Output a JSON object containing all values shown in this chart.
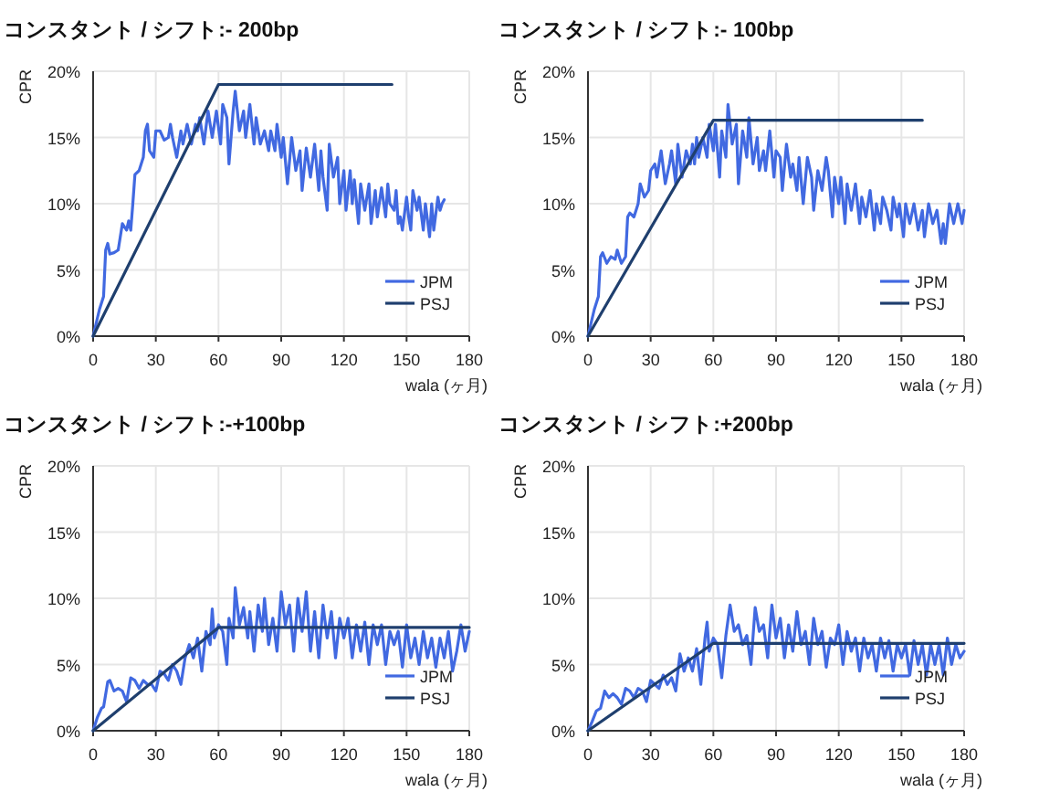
{
  "chart_data": [
    {
      "type": "line",
      "title": "コンスタント / シフト:- 200bp",
      "xlabel": "wala (ヶ月)",
      "ylabel": "CPR",
      "xlim": [
        0,
        180
      ],
      "xticks": [
        0,
        30,
        60,
        90,
        120,
        150,
        180
      ],
      "ylim": [
        0,
        20
      ],
      "yticks": [
        {
          "value": 0,
          "label": "0%"
        },
        {
          "value": 5,
          "label": "5%"
        },
        {
          "value": 10,
          "label": "10%"
        },
        {
          "value": 15,
          "label": "15%"
        },
        {
          "value": 20,
          "label": "20%"
        }
      ],
      "grid": true,
      "legend": "bottom right",
      "series": [
        {
          "name": "JPM",
          "color": "#4169e1",
          "x": [
            0,
            3,
            5,
            6,
            7,
            8,
            10,
            12,
            13,
            14,
            16,
            17,
            18,
            19,
            20,
            22,
            24,
            25,
            26,
            27,
            29,
            30,
            32,
            34,
            36,
            37,
            38,
            40,
            42,
            43,
            45,
            47,
            49,
            50,
            51,
            53,
            55,
            57,
            59,
            61,
            62,
            64,
            65,
            67,
            68,
            70,
            72,
            73,
            75,
            77,
            78,
            80,
            82,
            84,
            85,
            87,
            88,
            90,
            91,
            93,
            95,
            97,
            99,
            100,
            102,
            104,
            106,
            108,
            109,
            110,
            112,
            113,
            115,
            117,
            118,
            120,
            121,
            123,
            124,
            125,
            127,
            128,
            130,
            132,
            133,
            135,
            136,
            138,
            140,
            141,
            142,
            144,
            145,
            146,
            147,
            148,
            150,
            151,
            152,
            153,
            155,
            156,
            158,
            159,
            161,
            162,
            163,
            165,
            166,
            167,
            168
          ],
          "values": [
            0,
            2,
            3,
            6.5,
            7,
            6.2,
            6.3,
            6.5,
            7.5,
            8.5,
            8,
            8.7,
            8,
            10,
            12.2,
            12.5,
            13.5,
            15.5,
            16,
            14,
            13.5,
            15.5,
            15.5,
            14.8,
            15,
            16,
            15,
            13.5,
            15.5,
            14.5,
            16,
            14.5,
            16,
            15.5,
            16.5,
            14.5,
            17,
            15,
            17,
            14.5,
            17.5,
            16.5,
            13,
            17,
            18.5,
            15.5,
            17,
            15,
            17.5,
            14.5,
            16.5,
            14.5,
            15.5,
            14,
            15.5,
            14,
            16,
            13.5,
            15,
            11.5,
            15,
            12.5,
            14,
            11,
            14.2,
            12,
            14.5,
            11,
            14,
            12,
            9.5,
            14.5,
            12,
            13.5,
            10,
            12.5,
            9.5,
            12.5,
            10,
            11.8,
            8.5,
            11.5,
            9.5,
            11.5,
            8.5,
            11,
            9,
            11.2,
            9,
            11.5,
            10,
            9.5,
            11,
            8.5,
            9,
            8,
            10.5,
            9,
            8,
            11,
            9.5,
            10.5,
            8,
            10,
            7.5,
            10,
            8,
            10.5,
            9.5,
            10,
            10.3
          ]
        },
        {
          "name": "PSJ",
          "color": "#1f3f6e",
          "x": [
            0,
            60,
            143
          ],
          "values": [
            0,
            19,
            19
          ]
        }
      ]
    },
    {
      "type": "line",
      "title": "コンスタント / シフト:- 100bp",
      "xlabel": "wala (ヶ月)",
      "ylabel": "CPR",
      "xlim": [
        0,
        180
      ],
      "xticks": [
        0,
        30,
        60,
        90,
        120,
        150,
        180
      ],
      "ylim": [
        0,
        20
      ],
      "yticks": [
        {
          "value": 0,
          "label": "0%"
        },
        {
          "value": 5,
          "label": "5%"
        },
        {
          "value": 10,
          "label": "10%"
        },
        {
          "value": 15,
          "label": "15%"
        },
        {
          "value": 20,
          "label": "20%"
        }
      ],
      "grid": true,
      "legend": "bottom right",
      "series": [
        {
          "name": "JPM",
          "color": "#4169e1",
          "x": [
            0,
            3,
            5,
            6,
            7,
            9,
            11,
            13,
            14,
            16,
            18,
            19,
            20,
            22,
            24,
            25,
            27,
            29,
            30,
            32,
            33,
            35,
            37,
            39,
            40,
            42,
            43,
            45,
            47,
            49,
            50,
            51,
            52,
            53,
            55,
            57,
            58,
            60,
            61,
            63,
            64,
            66,
            67,
            69,
            71,
            72,
            74,
            76,
            77,
            79,
            81,
            82,
            84,
            85,
            87,
            89,
            90,
            92,
            93,
            95,
            97,
            98,
            100,
            101,
            103,
            105,
            107,
            108,
            110,
            112,
            114,
            115,
            117,
            118,
            120,
            121,
            123,
            124,
            126,
            128,
            130,
            131,
            133,
            135,
            137,
            138,
            140,
            141,
            143,
            145,
            146,
            148,
            149,
            151,
            152,
            154,
            156,
            158,
            160,
            161,
            163,
            165,
            167,
            169,
            170,
            171,
            173,
            175,
            177,
            179,
            180
          ],
          "values": [
            0,
            2,
            3,
            6,
            6.3,
            5.5,
            6,
            5.8,
            6.5,
            5.5,
            6,
            9,
            9.3,
            9,
            10,
            11.5,
            10.5,
            11,
            12.5,
            13,
            12,
            14,
            11.5,
            13,
            14,
            11.5,
            14.5,
            12,
            14,
            13,
            14.5,
            13,
            15,
            13.5,
            15,
            13.5,
            16,
            14,
            16,
            12,
            15.5,
            13.5,
            17.5,
            14.5,
            16,
            11.5,
            15.5,
            13.5,
            16.5,
            13,
            15,
            12.5,
            14,
            12.5,
            15.5,
            12,
            14,
            13.5,
            11,
            14.5,
            12,
            13,
            11,
            13.5,
            10,
            13.5,
            12,
            9.5,
            12.5,
            11,
            13.5,
            12.5,
            9,
            12,
            10,
            12,
            8.5,
            11.5,
            9.5,
            11.5,
            8.5,
            10.5,
            9,
            11,
            8,
            10,
            8.5,
            10.5,
            9.5,
            8,
            10.5,
            9,
            10,
            7.5,
            10,
            8.5,
            10,
            8,
            9.5,
            7.5,
            10,
            8.5,
            9.5,
            7,
            8.5,
            7,
            10,
            8.5,
            10,
            8.5,
            9.5
          ]
        },
        {
          "name": "PSJ",
          "color": "#1f3f6e",
          "x": [
            0,
            60,
            160
          ],
          "values": [
            0,
            16.3,
            16.3
          ]
        }
      ]
    },
    {
      "type": "line",
      "title": "コンスタント / シフト:-+100bp",
      "xlabel": "wala (ヶ月)",
      "ylabel": "CPR",
      "xlim": [
        0,
        180
      ],
      "xticks": [
        0,
        30,
        60,
        90,
        120,
        150,
        180
      ],
      "ylim": [
        0,
        20
      ],
      "yticks": [
        {
          "value": 0,
          "label": "0%"
        },
        {
          "value": 5,
          "label": "5%"
        },
        {
          "value": 10,
          "label": "10%"
        },
        {
          "value": 15,
          "label": "15%"
        },
        {
          "value": 20,
          "label": "20%"
        }
      ],
      "grid": true,
      "legend": "bottom right",
      "series": [
        {
          "name": "JPM",
          "color": "#4169e1",
          "x": [
            0,
            2,
            4,
            5,
            7,
            8,
            10,
            12,
            14,
            16,
            18,
            20,
            22,
            24,
            26,
            28,
            30,
            32,
            34,
            36,
            38,
            40,
            42,
            44,
            46,
            48,
            50,
            52,
            54,
            56,
            57,
            58,
            60,
            62,
            64,
            65,
            67,
            68,
            70,
            72,
            74,
            75,
            77,
            79,
            81,
            82,
            84,
            86,
            88,
            90,
            92,
            94,
            96,
            98,
            100,
            102,
            104,
            106,
            108,
            110,
            112,
            114,
            116,
            118,
            120,
            122,
            124,
            126,
            128,
            130,
            132,
            134,
            136,
            138,
            140,
            142,
            144,
            146,
            148,
            150,
            152,
            154,
            156,
            158,
            160,
            162,
            164,
            166,
            168,
            170,
            172,
            174,
            176,
            178,
            180
          ],
          "values": [
            0,
            1,
            1.7,
            1.8,
            3.7,
            3.8,
            3,
            3.2,
            3,
            2.2,
            4,
            3.8,
            3.2,
            3.8,
            3.5,
            3.5,
            3,
            4.5,
            4.3,
            3.8,
            5,
            4.5,
            3.5,
            5.5,
            6.5,
            5.5,
            7,
            4.5,
            7.5,
            6.5,
            9.2,
            7,
            8,
            7.5,
            5,
            8.5,
            7,
            10.8,
            8,
            9.3,
            7,
            9,
            6,
            9.5,
            7.5,
            10,
            6.5,
            8.5,
            6,
            10.5,
            8,
            9.5,
            6,
            10,
            7.5,
            10.5,
            6,
            9,
            5.5,
            9.5,
            7,
            9,
            5.5,
            8.5,
            7,
            8.5,
            5.5,
            8,
            6,
            8.2,
            5,
            8,
            6.5,
            8,
            5,
            7.5,
            6.5,
            7.5,
            4.8,
            8,
            5.5,
            7,
            5,
            7.5,
            5.5,
            7,
            4.8,
            7,
            5.5,
            7.5,
            4.5,
            6,
            8,
            6,
            7.5
          ]
        },
        {
          "name": "PSJ",
          "color": "#1f3f6e",
          "x": [
            0,
            60,
            180
          ],
          "values": [
            0,
            7.8,
            7.8
          ]
        }
      ]
    },
    {
      "type": "line",
      "title": "コンスタント / シフト:+200bp",
      "xlabel": "wala (ヶ月)",
      "ylabel": "CPR",
      "xlim": [
        0,
        180
      ],
      "xticks": [
        0,
        30,
        60,
        90,
        120,
        150,
        180
      ],
      "ylim": [
        0,
        20
      ],
      "yticks": [
        {
          "value": 0,
          "label": "0%"
        },
        {
          "value": 5,
          "label": "5%"
        },
        {
          "value": 10,
          "label": "10%"
        },
        {
          "value": 15,
          "label": "15%"
        },
        {
          "value": 20,
          "label": "20%"
        }
      ],
      "grid": true,
      "legend": "bottom right",
      "series": [
        {
          "name": "JPM",
          "color": "#4169e1",
          "x": [
            0,
            2,
            4,
            6,
            8,
            10,
            12,
            14,
            16,
            18,
            20,
            22,
            24,
            26,
            28,
            30,
            32,
            34,
            36,
            38,
            40,
            42,
            44,
            46,
            48,
            50,
            52,
            54,
            56,
            57,
            58,
            60,
            62,
            64,
            66,
            68,
            70,
            72,
            74,
            76,
            78,
            80,
            82,
            84,
            86,
            88,
            90,
            92,
            94,
            96,
            98,
            100,
            102,
            104,
            106,
            108,
            110,
            112,
            114,
            116,
            118,
            120,
            122,
            124,
            126,
            128,
            130,
            132,
            134,
            136,
            138,
            140,
            142,
            144,
            146,
            148,
            150,
            152,
            154,
            156,
            158,
            160,
            162,
            164,
            166,
            168,
            170,
            172,
            174,
            176,
            178,
            180
          ],
          "values": [
            0,
            0.7,
            1.5,
            1.7,
            3,
            2.5,
            2.8,
            2.5,
            2,
            3.2,
            3,
            2.5,
            3.2,
            3,
            2.2,
            3.8,
            3.5,
            3.2,
            4.2,
            3.5,
            4,
            3,
            5.8,
            4.5,
            5.5,
            4.5,
            6.2,
            3.5,
            7,
            8.2,
            6,
            7,
            6.5,
            4,
            7.2,
            9.5,
            7.5,
            8,
            6.5,
            7.2,
            5,
            9.3,
            7.5,
            8,
            5.5,
            9.5,
            7,
            8.5,
            5.5,
            8,
            6,
            9,
            6.5,
            7.5,
            5,
            8.5,
            6.5,
            7.5,
            4.8,
            7,
            6.5,
            8,
            5,
            7.5,
            6,
            7,
            4.5,
            7,
            5.5,
            6.5,
            4.5,
            7,
            5.5,
            6.8,
            4.5,
            6.5,
            5.5,
            6.5,
            4.2,
            6.8,
            5,
            6.5,
            4.2,
            6.5,
            5,
            6.5,
            4.2,
            7,
            5,
            6.5,
            5.5,
            6
          ]
        },
        {
          "name": "PSJ",
          "color": "#1f3f6e",
          "x": [
            0,
            60,
            180
          ],
          "values": [
            0,
            6.6,
            6.6
          ]
        }
      ]
    }
  ]
}
